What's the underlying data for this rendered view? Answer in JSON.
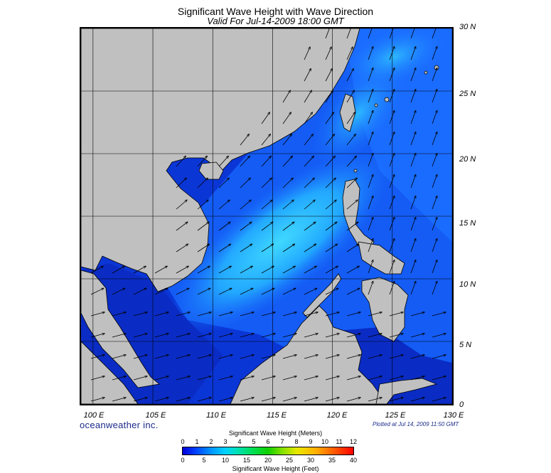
{
  "title": "Significant Wave Height with Wave Direction",
  "subtitle": "Valid For Jul-14-2009 18:00 GMT",
  "latitude_labels": [
    "30 N",
    "25 N",
    "20 N",
    "15 N",
    "10 N",
    "5 N",
    "0"
  ],
  "longitude_labels": [
    "100 E",
    "105 E",
    "110 E",
    "115 E",
    "120 E",
    "125 E",
    "130 E"
  ],
  "brand": "oceanweather inc.",
  "plotted_note": "Plotted at Jul 14, 2009 11:50 GMT",
  "legend": {
    "meters_title": "Significant Wave Height (Meters)",
    "meters_ticks": [
      "0",
      "1",
      "2",
      "3",
      "4",
      "5",
      "6",
      "7",
      "8",
      "9",
      "10",
      "11",
      "12"
    ],
    "feet_title": "Significant Wave Height (Feet)",
    "feet_ticks": [
      "0",
      "5",
      "10",
      "15",
      "20",
      "25",
      "30",
      "35",
      "40"
    ]
  },
  "colors": {
    "land": "#c0c0c0",
    "deep_low": "#0b36d6",
    "mid": "#1a6cff",
    "high": "#2fc6ff",
    "arrow": "#000000"
  },
  "map_extent": {
    "lon_min": 99,
    "lon_max": 130,
    "lat_min": 0,
    "lat_max": 30,
    "lon_step": 5,
    "lat_step": 5
  }
}
